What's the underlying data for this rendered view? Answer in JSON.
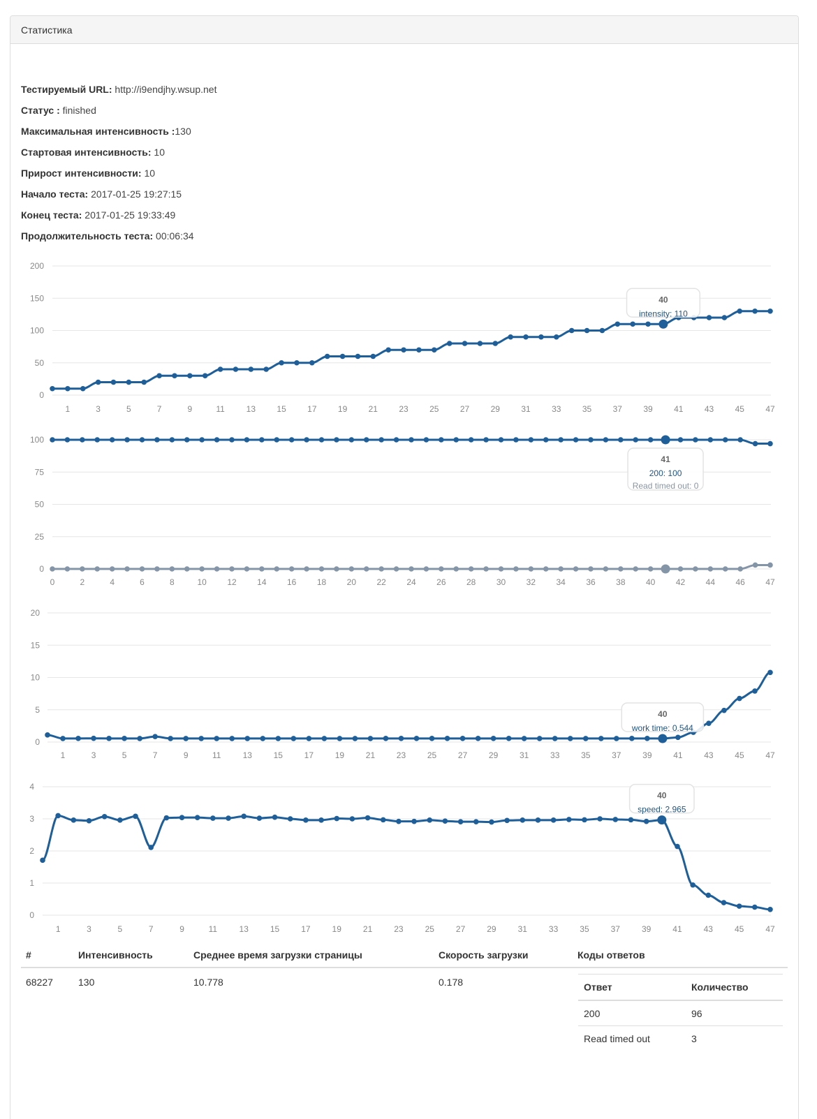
{
  "panel": {
    "title": "Статистика"
  },
  "info": [
    {
      "label": "Тестируемый URL:",
      "value": "http://i9endjhy.wsup.net"
    },
    {
      "label": "Статус :",
      "value": "finished"
    },
    {
      "label": "Максимальная интенсивность :",
      "value": "130"
    },
    {
      "label": "Стартовая интенсивность:",
      "value": "10"
    },
    {
      "label": "Прирост интенсивности:",
      "value": "10"
    },
    {
      "label": "Начало теста:",
      "value": "2017-01-25 19:27:15"
    },
    {
      "label": "Конец теста:",
      "value": "2017-01-25 19:33:49"
    },
    {
      "label": "Продолжительность теста:",
      "value": "00:06:34"
    }
  ],
  "chart_data": [
    {
      "type": "line",
      "title": "",
      "xlabel": "",
      "ylabel": "",
      "x": [
        0,
        1,
        2,
        3,
        4,
        5,
        6,
        7,
        8,
        9,
        10,
        11,
        12,
        13,
        14,
        15,
        16,
        17,
        18,
        19,
        20,
        21,
        22,
        23,
        24,
        25,
        26,
        27,
        28,
        29,
        30,
        31,
        32,
        33,
        34,
        35,
        36,
        37,
        38,
        39,
        40,
        41,
        42,
        43,
        44,
        45,
        46,
        47
      ],
      "x_tick_labels": [
        "1",
        "3",
        "5",
        "7",
        "9",
        "11",
        "13",
        "15",
        "17",
        "19",
        "21",
        "23",
        "25",
        "27",
        "29",
        "31",
        "33",
        "35",
        "37",
        "39",
        "41",
        "43",
        "45",
        "47"
      ],
      "x_tick_positions": [
        1,
        3,
        5,
        7,
        9,
        11,
        13,
        15,
        17,
        19,
        21,
        23,
        25,
        27,
        29,
        31,
        33,
        35,
        37,
        39,
        41,
        43,
        45,
        47
      ],
      "ylim": [
        0,
        200
      ],
      "y_ticks": [
        "0",
        "50",
        "100",
        "150",
        "200"
      ],
      "grid": true,
      "series": [
        {
          "name": "intensity",
          "color": "#1f5f99",
          "values": [
            10,
            10,
            10,
            20,
            20,
            20,
            20,
            30,
            30,
            30,
            30,
            40,
            40,
            40,
            40,
            50,
            50,
            50,
            60,
            60,
            60,
            60,
            70,
            70,
            70,
            70,
            80,
            80,
            80,
            80,
            90,
            90,
            90,
            90,
            100,
            100,
            100,
            110,
            110,
            110,
            110,
            120,
            120,
            120,
            120,
            130,
            130,
            130
          ]
        }
      ],
      "tooltip": {
        "index": 40,
        "title": "40",
        "lines": [
          {
            "text": "intensity: 110"
          }
        ]
      }
    },
    {
      "type": "line",
      "title": "",
      "xlabel": "",
      "ylabel": "",
      "x": [
        0,
        1,
        2,
        3,
        4,
        5,
        6,
        7,
        8,
        9,
        10,
        11,
        12,
        13,
        14,
        15,
        16,
        17,
        18,
        19,
        20,
        21,
        22,
        23,
        24,
        25,
        26,
        27,
        28,
        29,
        30,
        31,
        32,
        33,
        34,
        35,
        36,
        37,
        38,
        39,
        40,
        41,
        42,
        43,
        44,
        45,
        46,
        47,
        48
      ],
      "x_tick_labels": [
        "0",
        "2",
        "4",
        "6",
        "8",
        "10",
        "12",
        "14",
        "16",
        "18",
        "20",
        "22",
        "24",
        "26",
        "28",
        "30",
        "32",
        "34",
        "36",
        "38",
        "40",
        "42",
        "44",
        "46",
        "47"
      ],
      "x_tick_positions": [
        0,
        2,
        4,
        6,
        8,
        10,
        12,
        14,
        16,
        18,
        20,
        22,
        24,
        26,
        28,
        30,
        32,
        34,
        36,
        38,
        40,
        42,
        44,
        46,
        48
      ],
      "ylim": [
        0,
        100
      ],
      "y_ticks": [
        "0",
        "25",
        "50",
        "75",
        "100"
      ],
      "grid": true,
      "series": [
        {
          "name": "200",
          "color": "#1f5f99",
          "values": [
            100,
            100,
            100,
            100,
            100,
            100,
            100,
            100,
            100,
            100,
            100,
            100,
            100,
            100,
            100,
            100,
            100,
            100,
            100,
            100,
            100,
            100,
            100,
            100,
            100,
            100,
            100,
            100,
            100,
            100,
            100,
            100,
            100,
            100,
            100,
            100,
            100,
            100,
            100,
            100,
            100,
            100,
            100,
            100,
            100,
            100,
            100,
            97,
            97
          ]
        },
        {
          "name": "Read timed out",
          "color": "#8595a8",
          "values": [
            0,
            0,
            0,
            0,
            0,
            0,
            0,
            0,
            0,
            0,
            0,
            0,
            0,
            0,
            0,
            0,
            0,
            0,
            0,
            0,
            0,
            0,
            0,
            0,
            0,
            0,
            0,
            0,
            0,
            0,
            0,
            0,
            0,
            0,
            0,
            0,
            0,
            0,
            0,
            0,
            0,
            0,
            0,
            0,
            0,
            0,
            0,
            3,
            3
          ]
        }
      ],
      "tooltip": {
        "index": 41,
        "title": "41",
        "lines": [
          {
            "text": "200: 100"
          },
          {
            "text": "Read timed out: 0"
          }
        ]
      }
    },
    {
      "type": "line",
      "title": "",
      "xlabel": "",
      "ylabel": "",
      "x": [
        0,
        1,
        2,
        3,
        4,
        5,
        6,
        7,
        8,
        9,
        10,
        11,
        12,
        13,
        14,
        15,
        16,
        17,
        18,
        19,
        20,
        21,
        22,
        23,
        24,
        25,
        26,
        27,
        28,
        29,
        30,
        31,
        32,
        33,
        34,
        35,
        36,
        37,
        38,
        39,
        40,
        41,
        42,
        43,
        44,
        45,
        46,
        47
      ],
      "x_tick_labels": [
        "1",
        "3",
        "5",
        "7",
        "9",
        "11",
        "13",
        "15",
        "17",
        "19",
        "21",
        "23",
        "25",
        "27",
        "29",
        "31",
        "33",
        "35",
        "37",
        "39",
        "41",
        "43",
        "45",
        "47"
      ],
      "x_tick_positions": [
        1,
        3,
        5,
        7,
        9,
        11,
        13,
        15,
        17,
        19,
        21,
        23,
        25,
        27,
        29,
        31,
        33,
        35,
        37,
        39,
        41,
        43,
        45,
        47
      ],
      "ylim": [
        0,
        20
      ],
      "y_ticks": [
        "0",
        "5",
        "10",
        "15",
        "20"
      ],
      "grid": true,
      "series": [
        {
          "name": "work time",
          "color": "#1f5f99",
          "values": [
            1.1,
            0.55,
            0.56,
            0.57,
            0.56,
            0.56,
            0.55,
            0.85,
            0.55,
            0.55,
            0.55,
            0.55,
            0.55,
            0.55,
            0.55,
            0.55,
            0.55,
            0.55,
            0.55,
            0.55,
            0.55,
            0.55,
            0.56,
            0.56,
            0.56,
            0.56,
            0.56,
            0.56,
            0.56,
            0.56,
            0.56,
            0.55,
            0.55,
            0.55,
            0.55,
            0.55,
            0.55,
            0.55,
            0.56,
            0.56,
            0.544,
            0.72,
            1.5,
            2.9,
            4.9,
            6.75,
            7.9,
            10.778
          ]
        }
      ],
      "tooltip": {
        "index": 40,
        "title": "40",
        "lines": [
          {
            "text": "work time: 0.544"
          }
        ]
      }
    },
    {
      "type": "line",
      "title": "",
      "xlabel": "",
      "ylabel": "",
      "x": [
        0,
        1,
        2,
        3,
        4,
        5,
        6,
        7,
        8,
        9,
        10,
        11,
        12,
        13,
        14,
        15,
        16,
        17,
        18,
        19,
        20,
        21,
        22,
        23,
        24,
        25,
        26,
        27,
        28,
        29,
        30,
        31,
        32,
        33,
        34,
        35,
        36,
        37,
        38,
        39,
        40,
        41,
        42,
        43,
        44,
        45,
        46,
        47
      ],
      "x_tick_labels": [
        "1",
        "3",
        "5",
        "7",
        "9",
        "11",
        "13",
        "15",
        "17",
        "19",
        "21",
        "23",
        "25",
        "27",
        "29",
        "31",
        "33",
        "35",
        "37",
        "39",
        "41",
        "43",
        "45",
        "47"
      ],
      "x_tick_positions": [
        1,
        3,
        5,
        7,
        9,
        11,
        13,
        15,
        17,
        19,
        21,
        23,
        25,
        27,
        29,
        31,
        33,
        35,
        37,
        39,
        41,
        43,
        45,
        47
      ],
      "ylim": [
        0,
        4
      ],
      "y_ticks": [
        "0",
        "1",
        "2",
        "3",
        "4"
      ],
      "grid": true,
      "series": [
        {
          "name": "speed",
          "color": "#1f5f99",
          "values": [
            1.71,
            3.1,
            2.96,
            2.94,
            3.07,
            2.96,
            3.08,
            2.11,
            3.03,
            3.04,
            3.04,
            3.02,
            3.02,
            3.08,
            3.02,
            3.05,
            3.0,
            2.96,
            2.96,
            3.01,
            3.0,
            3.03,
            2.97,
            2.92,
            2.92,
            2.96,
            2.93,
            2.91,
            2.91,
            2.9,
            2.95,
            2.96,
            2.96,
            2.96,
            2.98,
            2.97,
            3.0,
            2.98,
            2.97,
            2.92,
            2.965,
            2.14,
            0.94,
            0.62,
            0.39,
            0.28,
            0.25,
            0.178
          ]
        }
      ],
      "tooltip": {
        "index": 40,
        "title": "40",
        "lines": [
          {
            "text": "speed: 2.965"
          }
        ]
      }
    }
  ],
  "summary_table": {
    "headers": [
      "#",
      "Интенсивность",
      "Среднее время загрузки страницы",
      "Скорость загрузки",
      "Коды ответов"
    ],
    "row": [
      "68227",
      "130",
      "10.778",
      "0.178"
    ],
    "codes": {
      "headers": [
        "Ответ",
        "Количество"
      ],
      "rows": [
        [
          "200",
          "96"
        ],
        [
          "Read timed out",
          "3"
        ]
      ]
    }
  }
}
